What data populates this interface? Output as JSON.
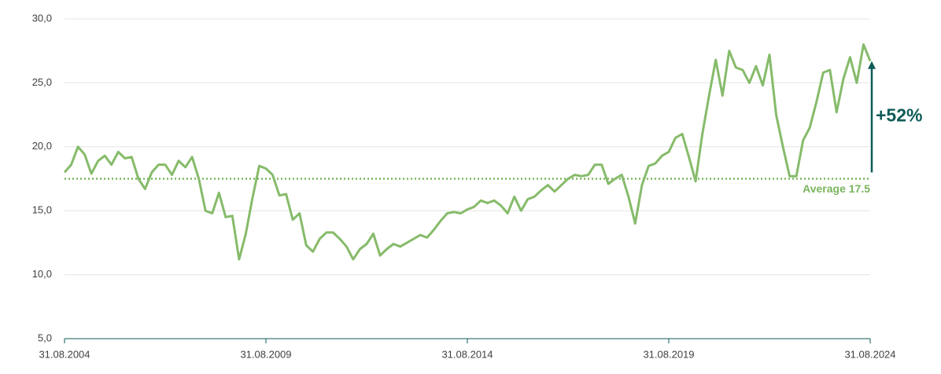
{
  "chart_data": {
    "type": "line",
    "categories": [
      "31.08.2004",
      null,
      null,
      null,
      null,
      null,
      null,
      null,
      null,
      null,
      null,
      null,
      null,
      null,
      null,
      null,
      null,
      null,
      null,
      null,
      null,
      null,
      null,
      null,
      null,
      null,
      null,
      null,
      null,
      null,
      "31.08.2009",
      null,
      null,
      null,
      null,
      null,
      null,
      null,
      null,
      null,
      null,
      null,
      null,
      null,
      null,
      null,
      null,
      null,
      null,
      null,
      null,
      null,
      null,
      null,
      null,
      null,
      null,
      null,
      null,
      null,
      "31.08.2014",
      null,
      null,
      null,
      null,
      null,
      null,
      null,
      null,
      null,
      null,
      null,
      null,
      null,
      null,
      null,
      null,
      null,
      null,
      null,
      null,
      null,
      null,
      null,
      null,
      null,
      null,
      null,
      null,
      null,
      "31.08.2019",
      null,
      null,
      null,
      null,
      null,
      null,
      null,
      null,
      null,
      null,
      null,
      null,
      null,
      null,
      null,
      null,
      null,
      null,
      null,
      null,
      null,
      null,
      null,
      null,
      null,
      null,
      null,
      null,
      null,
      "31.08.2024"
    ],
    "values": [
      18.0,
      18.6,
      20.0,
      19.4,
      17.9,
      18.9,
      19.3,
      18.6,
      19.6,
      19.1,
      19.2,
      17.5,
      16.7,
      18.0,
      18.6,
      18.6,
      17.8,
      18.9,
      18.4,
      19.2,
      17.5,
      15.0,
      14.8,
      16.4,
      14.5,
      14.6,
      11.2,
      13.2,
      16.0,
      18.5,
      18.3,
      17.8,
      16.2,
      16.3,
      14.3,
      14.8,
      12.3,
      11.8,
      12.8,
      13.3,
      13.3,
      12.8,
      12.2,
      11.2,
      12.0,
      12.4,
      13.2,
      11.5,
      12.0,
      12.4,
      12.2,
      12.5,
      12.8,
      13.1,
      12.9,
      13.5,
      14.2,
      14.8,
      14.9,
      14.8,
      15.1,
      15.3,
      15.8,
      15.6,
      15.8,
      15.4,
      14.8,
      16.1,
      15.0,
      15.9,
      16.1,
      16.6,
      17.0,
      16.5,
      17.0,
      17.5,
      17.8,
      17.7,
      17.8,
      18.6,
      18.6,
      17.1,
      17.5,
      17.8,
      16.1,
      14.0,
      17.0,
      18.5,
      18.7,
      19.3,
      19.6,
      20.7,
      21.0,
      19.2,
      17.3,
      21.0,
      24.0,
      26.8,
      24.0,
      27.5,
      26.2,
      26.0,
      25.0,
      26.3,
      24.8,
      27.2,
      22.5,
      20.0,
      17.7,
      17.7,
      20.5,
      21.5,
      23.5,
      25.8,
      26.0,
      22.7,
      25.3,
      27.0,
      25.0,
      28.0,
      26.7
    ],
    "color": "#86bb6a",
    "ylim": [
      5,
      30
    ],
    "yticks": [
      {
        "value": 5,
        "label": "5,0"
      },
      {
        "value": 10,
        "label": "10,0"
      },
      {
        "value": 15,
        "label": "15,0"
      },
      {
        "value": 20,
        "label": "20,0"
      },
      {
        "value": 25,
        "label": "25,0"
      },
      {
        "value": 30,
        "label": "30,0"
      }
    ],
    "grid": true,
    "average": {
      "value": 17.5,
      "label": "Average 17.5",
      "color": "#7ab55c"
    },
    "annotation": {
      "text": "+52%",
      "color": "#0e5b58"
    }
  }
}
